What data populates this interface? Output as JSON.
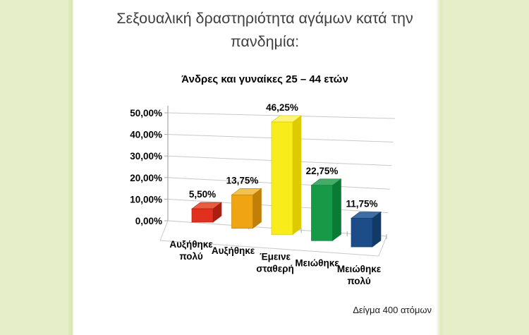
{
  "page": {
    "background_color": "#ffffff",
    "side_panel_color": "#e5eec8",
    "side_panel_edge_color": "#d8e6ae"
  },
  "header": {
    "title": "Σεξουαλική δραστηριότητα αγάμων κατά την πανδημία:",
    "title_lines": [
      "Σεξουαλική δραστηριότητα αγάμων κατά την",
      "πανδημία:"
    ],
    "title_color": "#3f3f3f"
  },
  "footer": {
    "sample_note": "Δείγμα 400 ατόμων"
  },
  "chart_data": {
    "type": "bar",
    "style": "3d-column",
    "title": "Άνδρες και γυναίκες 25 – 44 ετών",
    "categories": [
      "Αυξήθηκε πολύ",
      "Αυξήθηκε",
      "Έμεινε σταθερή",
      "Μειώθηκε",
      "Μειώθηκε πολύ"
    ],
    "category_lines": [
      [
        "Αυξήθηκε",
        "πολύ"
      ],
      [
        "Αυξήθηκε"
      ],
      [
        "Έμεινε",
        "σταθερή"
      ],
      [
        "Μειώθηκε"
      ],
      [
        "Μειώθηκε",
        "πολύ"
      ]
    ],
    "values": [
      5.5,
      13.75,
      46.25,
      22.75,
      11.75
    ],
    "value_labels": [
      "5,50%",
      "13,75%",
      "46,25%",
      "22,75%",
      "11,75%"
    ],
    "y_ticks": [
      "0,00%",
      "10,00%",
      "20,00%",
      "30,00%",
      "40,00%",
      "50,00%"
    ],
    "y_tick_values": [
      0,
      10,
      20,
      30,
      40,
      50
    ],
    "ylim": [
      0,
      50
    ],
    "xlabel": "",
    "ylabel": "",
    "legend": "none",
    "grid": "on",
    "gridline_color": "#c9c9c9",
    "axis_color": "#a8a8a8",
    "label_color": "#000000",
    "bar_colors": [
      {
        "name": "red",
        "front": "#e1301d",
        "top": "#e95c41",
        "side": "#aa1f0f"
      },
      {
        "name": "orange",
        "front": "#eea511",
        "top": "#f3c053",
        "side": "#c27f08"
      },
      {
        "name": "yellow",
        "front": "#f8ed1a",
        "top": "#fbf478",
        "side": "#ddca00"
      },
      {
        "name": "green",
        "front": "#169a47",
        "top": "#45ab68",
        "side": "#0b7a35"
      },
      {
        "name": "blue",
        "front": "#1c4d88",
        "top": "#3d6da2",
        "side": "#123a66"
      }
    ]
  }
}
